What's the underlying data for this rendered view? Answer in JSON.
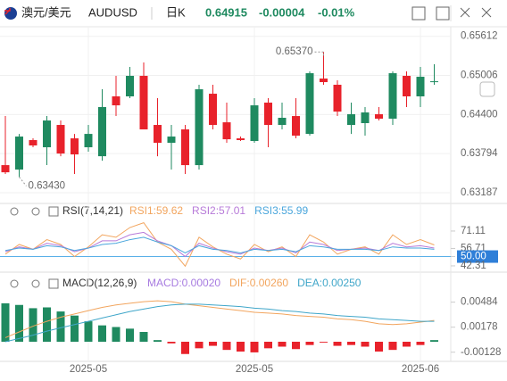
{
  "header": {
    "pair": "澳元/美元",
    "symbol": "AUDUSD",
    "period": "日K",
    "price": "0.64915",
    "change": "-0.00004",
    "percent": "-0.01%"
  },
  "chart_data": [
    {
      "type": "candlestick",
      "up_color": "#1f8a60",
      "down_color": "#e8222b",
      "categories": [
        null,
        null,
        null,
        null,
        null,
        null,
        "2025-05",
        null,
        null,
        null,
        null,
        null,
        null,
        null,
        null,
        null,
        null,
        null,
        "2025-05",
        null,
        null,
        null,
        null,
        null,
        null,
        null,
        null,
        null,
        null,
        null,
        "2025-06",
        null
      ],
      "open": [
        0.63615,
        0.63546,
        0.64003,
        0.63892,
        0.64238,
        0.6403,
        0.63892,
        0.63753,
        0.64681,
        0.64681,
        0.64999,
        0.64238,
        0.63961,
        0.64169,
        0.63615,
        0.64722,
        0.64279,
        0.6403,
        0.63989,
        0.64584,
        0.64238,
        0.64376,
        0.64099,
        0.64957,
        0.64861,
        0.64238,
        0.64266,
        0.64404,
        0.64335,
        0.64999,
        0.64681,
        0.64902
      ],
      "high": [
        0.64376,
        0.64099,
        0.6403,
        0.64376,
        0.64307,
        0.64099,
        0.64238,
        0.64791,
        0.64999,
        0.65137,
        0.65206,
        0.64653,
        0.64238,
        0.64238,
        0.64861,
        0.64861,
        0.64584,
        0.64058,
        0.64653,
        0.64653,
        0.64584,
        0.64653,
        0.65068,
        0.6537,
        0.6493,
        0.64584,
        0.64515,
        0.64515,
        0.65068,
        0.65068,
        0.65137,
        0.65179
      ],
      "low": [
        0.63477,
        0.6343,
        0.63892,
        0.63615,
        0.63753,
        0.63477,
        0.63823,
        0.63684,
        0.64376,
        0.64653,
        0.64169,
        0.63753,
        0.63546,
        0.63477,
        0.63546,
        0.64169,
        0.63961,
        0.63989,
        0.63961,
        0.63892,
        0.64169,
        0.6403,
        0.64072,
        0.64861,
        0.64376,
        0.64099,
        0.64072,
        0.64307,
        0.64238,
        0.64515,
        0.64515,
        0.64861
      ],
      "close": [
        0.63504,
        0.64058,
        0.6392,
        0.64307,
        0.63795,
        0.63781,
        0.64099,
        0.64515,
        0.64542,
        0.64999,
        0.64169,
        0.63961,
        0.64058,
        0.63615,
        0.64791,
        0.64238,
        0.64016,
        0.64003,
        0.64542,
        0.64238,
        0.64349,
        0.64072,
        0.6504,
        0.64902,
        0.64445,
        0.64404,
        0.64432,
        0.64335,
        0.6504,
        0.64681,
        0.64985,
        0.64915
      ],
      "annotations": [
        {
          "value": 0.6537,
          "label": "0.65370"
        },
        {
          "value": 0.6343,
          "label": "0.63430"
        }
      ],
      "ylim": [
        0.63021,
        0.6576
      ],
      "yticks": [
        0.65612,
        0.65006,
        {
          "value": 0.644,
          "label": "0.64400"
        },
        0.63794,
        0.63187
      ]
    },
    {
      "type": "line",
      "title": "RSI(7,14,21)",
      "series": [
        {
          "name": "RSI1:59.62",
          "color": "#f2a55e",
          "values": [
            52,
            60,
            56,
            64,
            60,
            50,
            58,
            68,
            66,
            74,
            78,
            62,
            56,
            42,
            66,
            58,
            52,
            48,
            60,
            54,
            58,
            50,
            68,
            62,
            52,
            56,
            58,
            52,
            68,
            60,
            64,
            59.62
          ]
        },
        {
          "name": "RSI2:57.01",
          "color": "#b77ad8",
          "values": [
            54,
            58,
            56,
            61,
            59,
            54,
            57,
            63,
            63,
            68,
            70,
            63,
            59,
            50,
            61,
            57,
            54,
            52,
            57,
            55,
            57,
            53,
            62,
            60,
            55,
            56,
            57,
            55,
            61,
            58,
            59,
            57.01
          ]
        },
        {
          "name": "RSI3:55.99",
          "color": "#4aa6dc",
          "values": [
            55,
            57,
            56,
            59,
            58,
            55,
            57,
            60,
            61,
            64,
            66,
            62,
            59,
            53,
            59,
            56,
            55,
            53,
            56,
            55,
            56,
            54,
            59,
            58,
            56,
            56,
            56,
            55,
            58,
            57,
            57,
            55.99
          ]
        }
      ],
      "ylim": [
        40.8,
        81.4
      ],
      "yticks": [
        71.11,
        56.71,
        {
          "value": 50,
          "label": "50.00"
        },
        42.31
      ]
    },
    {
      "type": "macd",
      "title": "MACD(12,26,9)",
      "up_color": "#1f8a60",
      "down_color": "#e8222b",
      "series": [
        {
          "name": "MACD:0.00020",
          "color": "#a77be0",
          "values": [
            0.0047,
            0.0045,
            0.0041,
            0.0042,
            0.0037,
            0.0032,
            0.0025,
            0.002,
            0.0018,
            0.0016,
            0.0012,
            0.0002,
            -0.0002,
            -0.0015,
            -0.0008,
            -0.0005,
            -0.001,
            -0.0012,
            -0.0013,
            -0.0008,
            -0.0006,
            -0.0009,
            -0.0004,
            -0.0001,
            -0.0005,
            -0.0004,
            -0.0006,
            -0.0012,
            -0.001,
            -0.0006,
            -0.0004,
            0.0002
          ]
        },
        {
          "name": "DIF:0.00260",
          "color": "#f2a55e",
          "values": [
            0.0005,
            0.0012,
            0.0019,
            0.0025,
            0.003,
            0.0034,
            0.0038,
            0.0042,
            0.0045,
            0.0047,
            0.0049,
            0.005,
            0.0049,
            0.0046,
            0.0044,
            0.0042,
            0.004,
            0.0038,
            0.0036,
            0.0035,
            0.0034,
            0.0032,
            0.0031,
            0.003,
            0.0028,
            0.0027,
            0.0025,
            0.0022,
            0.0021,
            0.0022,
            0.0024,
            0.0026
          ]
        },
        {
          "name": "DEA:0.00250",
          "color": "#3fa6c9",
          "values": [
            0,
            0.0004,
            0.0008,
            0.0013,
            0.0017,
            0.0021,
            0.0025,
            0.0029,
            0.0033,
            0.0037,
            0.004,
            0.0043,
            0.0045,
            0.0046,
            0.0046,
            0.0045,
            0.0044,
            0.0043,
            0.0041,
            0.004,
            0.0038,
            0.0037,
            0.0035,
            0.0034,
            0.0032,
            0.0031,
            0.003,
            0.0028,
            0.0027,
            0.0026,
            0.0025,
            0.0025
          ]
        }
      ],
      "ylim": [
        -0.0024,
        0.006
      ],
      "yticks": [
        0.00484,
        0.00178,
        -0.00128
      ]
    }
  ]
}
